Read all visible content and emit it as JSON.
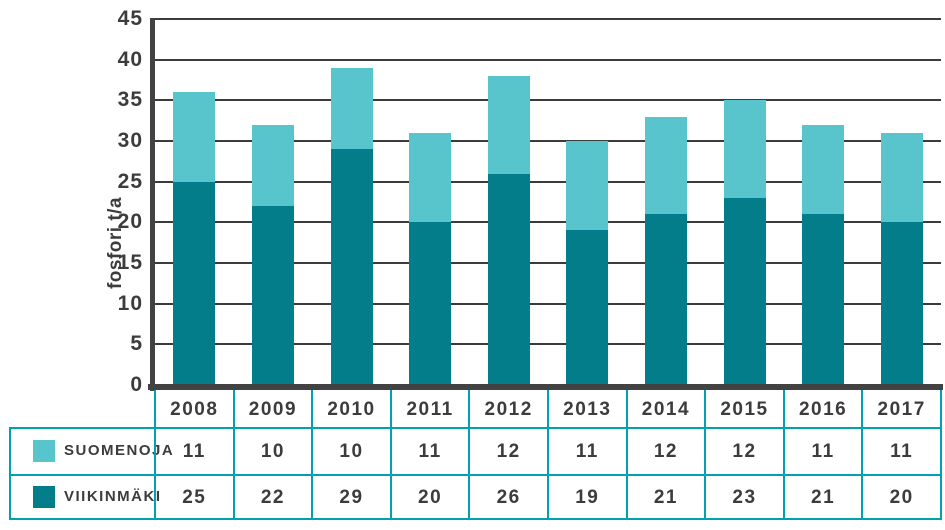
{
  "chart_data": {
    "type": "bar",
    "stacked": true,
    "categories": [
      "2008",
      "2009",
      "2010",
      "2011",
      "2012",
      "2013",
      "2014",
      "2015",
      "2016",
      "2017"
    ],
    "series": [
      {
        "name": "SUOMENOJA",
        "color": "#58C4CC",
        "values": [
          11,
          10,
          10,
          11,
          12,
          11,
          12,
          12,
          11,
          11
        ]
      },
      {
        "name": "VIIKINMÄKI",
        "color": "#047D8A",
        "values": [
          25,
          22,
          29,
          20,
          26,
          19,
          21,
          23,
          21,
          20
        ]
      }
    ],
    "title": "",
    "xlabel": "",
    "ylabel": "fosfori t/a",
    "ylim": [
      0,
      45
    ],
    "yticks": [
      0,
      5,
      10,
      15,
      20,
      25,
      30,
      35,
      40,
      45
    ],
    "grid": true,
    "legend_position": "table-left",
    "data_table_shown": true
  },
  "colors": {
    "suomenoja": "#58C4CC",
    "viikinmaki": "#047D8A",
    "table_border": "#00A1B0",
    "axis": "#424242",
    "gridline": "#3B3B3B",
    "text": "#3C3C3C",
    "background": "#FFFFFF"
  }
}
